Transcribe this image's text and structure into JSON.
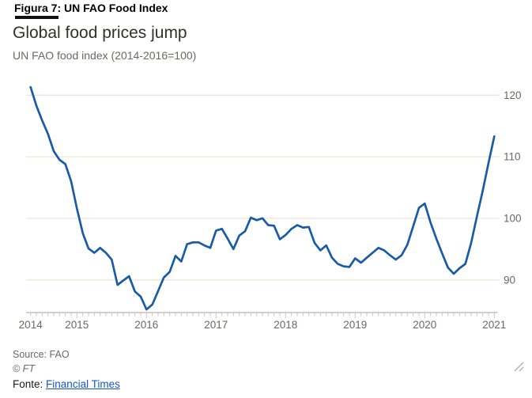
{
  "figure": {
    "kicker": "Figura 7: UN FAO Food Index",
    "title": "Global food prices jump",
    "subtitle": "UN FAO food index (2014-2016=100)",
    "source": "Source: FAO",
    "credit": "© FT",
    "footer_prefix": "Fonte:",
    "footer_link": "Financial Times"
  },
  "icons": {
    "resize_handle": "diagonal-hatch-resize-grip"
  },
  "colors": {
    "line": "#1a5ba6",
    "grid": "#f2e4d5",
    "axis": "#bcb2a8",
    "tick": "#cfc5bb",
    "text_muted": "#6e6862",
    "link": "#1456cc"
  },
  "chart_data": {
    "type": "line",
    "title": "Global food prices jump",
    "subtitle": "UN FAO food index (2014-2016=100)",
    "x_start": "2014-05",
    "x_end": "2021-01",
    "x_tick_labels": [
      "2014",
      "2015",
      "2016",
      "2017",
      "2018",
      "2019",
      "2020",
      "2021"
    ],
    "y_ticks": [
      90,
      100,
      110,
      120
    ],
    "ylim": [
      84.7,
      122.5
    ],
    "grid": true,
    "legend": "none",
    "series": [
      {
        "name": "UN FAO food index (2014-2016=100)",
        "frequency": "monthly",
        "values": [
          121.3,
          118.3,
          115.9,
          113.7,
          110.9,
          109.5,
          108.8,
          106.0,
          101.6,
          97.6,
          95.1,
          94.4,
          95.2,
          94.4,
          93.3,
          89.2,
          89.9,
          90.6,
          88.1,
          87.3,
          85.2,
          86.0,
          88.2,
          90.4,
          91.3,
          93.9,
          93.0,
          95.8,
          96.1,
          96.1,
          95.6,
          95.2,
          98.0,
          98.3,
          96.7,
          95.0,
          97.2,
          97.9,
          100.1,
          99.7,
          100.0,
          98.9,
          98.8,
          96.6,
          97.3,
          98.3,
          98.9,
          98.5,
          98.6,
          96.0,
          94.8,
          95.6,
          93.6,
          92.6,
          92.2,
          92.1,
          93.5,
          92.8,
          93.6,
          94.4,
          95.2,
          94.8,
          94.0,
          93.3,
          94.0,
          95.7,
          98.7,
          101.7,
          102.4,
          99.3,
          96.7,
          94.3,
          92.0,
          91.0,
          91.9,
          92.6,
          96.0,
          100.3,
          104.5,
          109.0,
          113.3
        ]
      }
    ]
  }
}
